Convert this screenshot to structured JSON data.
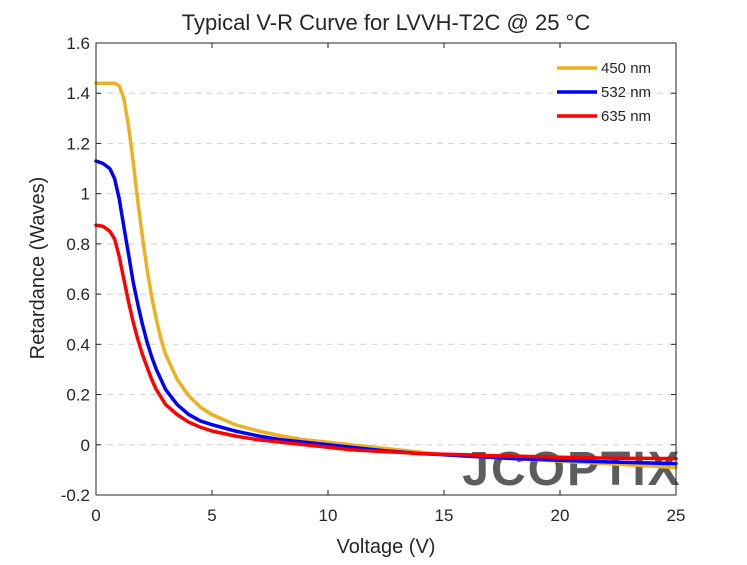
{
  "chart_data": {
    "type": "line",
    "title": "Typical V-R Curve for LVVH-T2C @ 25 °C",
    "xlabel": "Voltage (V)",
    "ylabel": "Retardance (Waves)",
    "xlim": [
      0,
      25
    ],
    "ylim": [
      -0.2,
      1.6
    ],
    "xticks": [
      0,
      5,
      10,
      15,
      20,
      25
    ],
    "xtick_labels": [
      "0",
      "5",
      "10",
      "15",
      "20",
      "25"
    ],
    "yticks": [
      -0.2,
      0,
      0.2,
      0.4,
      0.6,
      0.8,
      1,
      1.2,
      1.4,
      1.6
    ],
    "ytick_labels": [
      "-0.2",
      "0",
      "0.2",
      "0.4",
      "0.6",
      "0.8",
      "1",
      "1.2",
      "1.4",
      "1.6"
    ],
    "grid": "horizontal-dashed",
    "legend_position": "top-right",
    "watermark": "JCOPTIX",
    "series": [
      {
        "name": "450 nm",
        "color": "#EDB120",
        "x": [
          0,
          0.5,
          0.8,
          1.0,
          1.2,
          1.4,
          1.6,
          1.8,
          2.0,
          2.2,
          2.4,
          2.6,
          2.8,
          3.0,
          3.5,
          4.0,
          4.5,
          5.0,
          6.0,
          7.0,
          8.0,
          9.0,
          10.0,
          11.0,
          12.0,
          13.0,
          14.0,
          15.0,
          16.0,
          17.0,
          18.0,
          19.0,
          20.0,
          22.0,
          25.0
        ],
        "y": [
          1.44,
          1.44,
          1.44,
          1.43,
          1.38,
          1.27,
          1.13,
          0.97,
          0.83,
          0.7,
          0.59,
          0.5,
          0.42,
          0.36,
          0.26,
          0.195,
          0.15,
          0.12,
          0.08,
          0.055,
          0.035,
          0.02,
          0.01,
          0.0,
          -0.01,
          -0.02,
          -0.03,
          -0.04,
          -0.045,
          -0.05,
          -0.055,
          -0.06,
          -0.065,
          -0.075,
          -0.09
        ]
      },
      {
        "name": "532 nm",
        "color": "#0000FF",
        "x": [
          0,
          0.3,
          0.6,
          0.8,
          1.0,
          1.2,
          1.4,
          1.6,
          1.8,
          2.0,
          2.2,
          2.4,
          2.6,
          2.8,
          3.0,
          3.5,
          4.0,
          4.5,
          5.0,
          6.0,
          7.0,
          8.0,
          9.0,
          10.0,
          11.0,
          12.0,
          13.0,
          14.0,
          15.0,
          16.0,
          17.0,
          18.0,
          19.0,
          20.0,
          22.0,
          25.0
        ],
        "y": [
          1.13,
          1.12,
          1.1,
          1.06,
          0.98,
          0.87,
          0.76,
          0.65,
          0.56,
          0.48,
          0.41,
          0.35,
          0.3,
          0.26,
          0.22,
          0.16,
          0.12,
          0.095,
          0.08,
          0.055,
          0.035,
          0.02,
          0.01,
          0.0,
          -0.01,
          -0.02,
          -0.028,
          -0.035,
          -0.04,
          -0.045,
          -0.05,
          -0.055,
          -0.058,
          -0.062,
          -0.068,
          -0.075
        ]
      },
      {
        "name": "635 nm",
        "color": "#FF0000",
        "x": [
          0,
          0.3,
          0.6,
          0.8,
          1.0,
          1.2,
          1.4,
          1.6,
          1.8,
          2.0,
          2.2,
          2.4,
          2.6,
          2.8,
          3.0,
          3.5,
          4.0,
          4.5,
          5.0,
          6.0,
          7.0,
          8.0,
          9.0,
          10.0,
          11.0,
          12.0,
          13.0,
          14.0,
          15.0,
          16.0,
          17.0,
          18.0,
          19.0,
          20.0,
          22.0,
          25.0
        ],
        "y": [
          0.875,
          0.87,
          0.85,
          0.82,
          0.75,
          0.66,
          0.57,
          0.49,
          0.42,
          0.36,
          0.31,
          0.26,
          0.22,
          0.19,
          0.16,
          0.12,
          0.09,
          0.07,
          0.055,
          0.035,
          0.02,
          0.01,
          0.0,
          -0.01,
          -0.02,
          -0.025,
          -0.03,
          -0.035,
          -0.038,
          -0.04,
          -0.043,
          -0.045,
          -0.047,
          -0.05,
          -0.053,
          -0.055
        ]
      }
    ]
  }
}
